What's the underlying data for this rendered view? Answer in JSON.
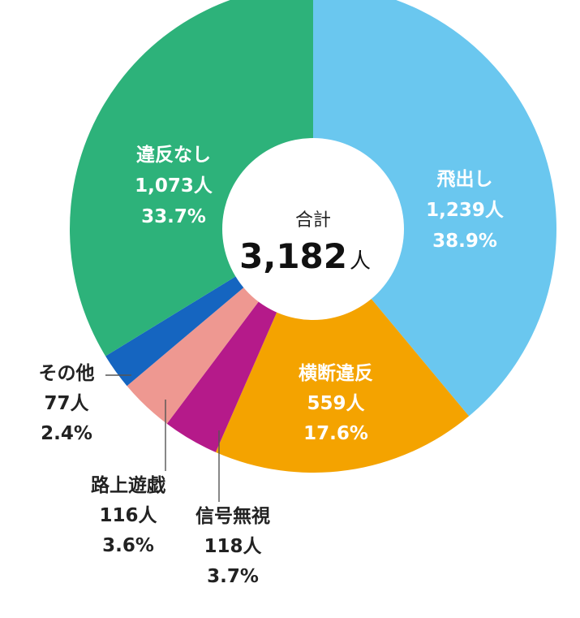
{
  "chart_data": {
    "type": "pie",
    "variant": "donut",
    "total": {
      "label": "合計",
      "value": "3,182",
      "unit": "人"
    },
    "slices": [
      {
        "name": "飛出し",
        "count": "1,239人",
        "percent": "38.9%",
        "value": 38.9,
        "color": "#6ac7ef"
      },
      {
        "name": "横断違反",
        "count": "559人",
        "percent": "17.6%",
        "value": 17.6,
        "color": "#f4a300"
      },
      {
        "name": "信号無視",
        "count": "118人",
        "percent": "3.7%",
        "value": 3.7,
        "color": "#b51a8a"
      },
      {
        "name": "路上遊戯",
        "count": "116人",
        "percent": "3.6%",
        "value": 3.6,
        "color": "#ee9891"
      },
      {
        "name": "その他",
        "count": "77人",
        "percent": "2.4%",
        "value": 2.4,
        "color": "#1565c0"
      },
      {
        "name": "違反なし",
        "count": "1,073人",
        "percent": "33.7%",
        "value": 33.7,
        "color": "#2db27a"
      }
    ]
  }
}
